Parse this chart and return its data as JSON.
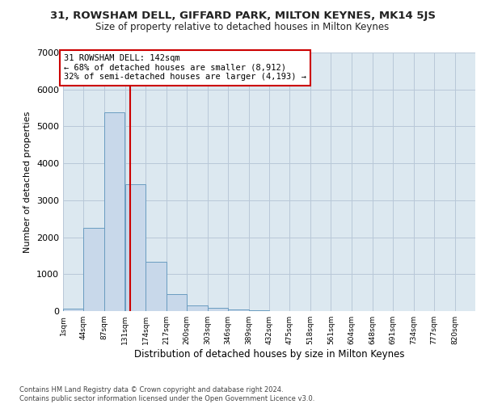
{
  "title_line1": "31, ROWSHAM DELL, GIFFARD PARK, MILTON KEYNES, MK14 5JS",
  "title_line2": "Size of property relative to detached houses in Milton Keynes",
  "xlabel": "Distribution of detached houses by size in Milton Keynes",
  "ylabel": "Number of detached properties",
  "footnote": "Contains HM Land Registry data © Crown copyright and database right 2024.\nContains public sector information licensed under the Open Government Licence v3.0.",
  "bar_color": "#c8d8ea",
  "bar_edge_color": "#6a9cc0",
  "grid_color": "#b8c8d8",
  "background_color": "#dce8f0",
  "vline_color": "#cc0000",
  "annotation_box_color": "#cc0000",
  "property_size": 142,
  "annotation_text": "31 ROWSHAM DELL: 142sqm\n← 68% of detached houses are smaller (8,912)\n32% of semi-detached houses are larger (4,193) →",
  "bin_edges": [
    1,
    44,
    87,
    131,
    174,
    217,
    260,
    303,
    346,
    389,
    432,
    475,
    518,
    561,
    604,
    648,
    691,
    734,
    777,
    820,
    863
  ],
  "bin_counts": [
    70,
    2250,
    5380,
    3440,
    1330,
    450,
    155,
    80,
    50,
    20,
    8,
    5,
    3,
    1,
    1,
    0,
    0,
    0,
    0,
    0
  ],
  "ylim": [
    0,
    7000
  ],
  "yticks": [
    0,
    1000,
    2000,
    3000,
    4000,
    5000,
    6000,
    7000
  ]
}
